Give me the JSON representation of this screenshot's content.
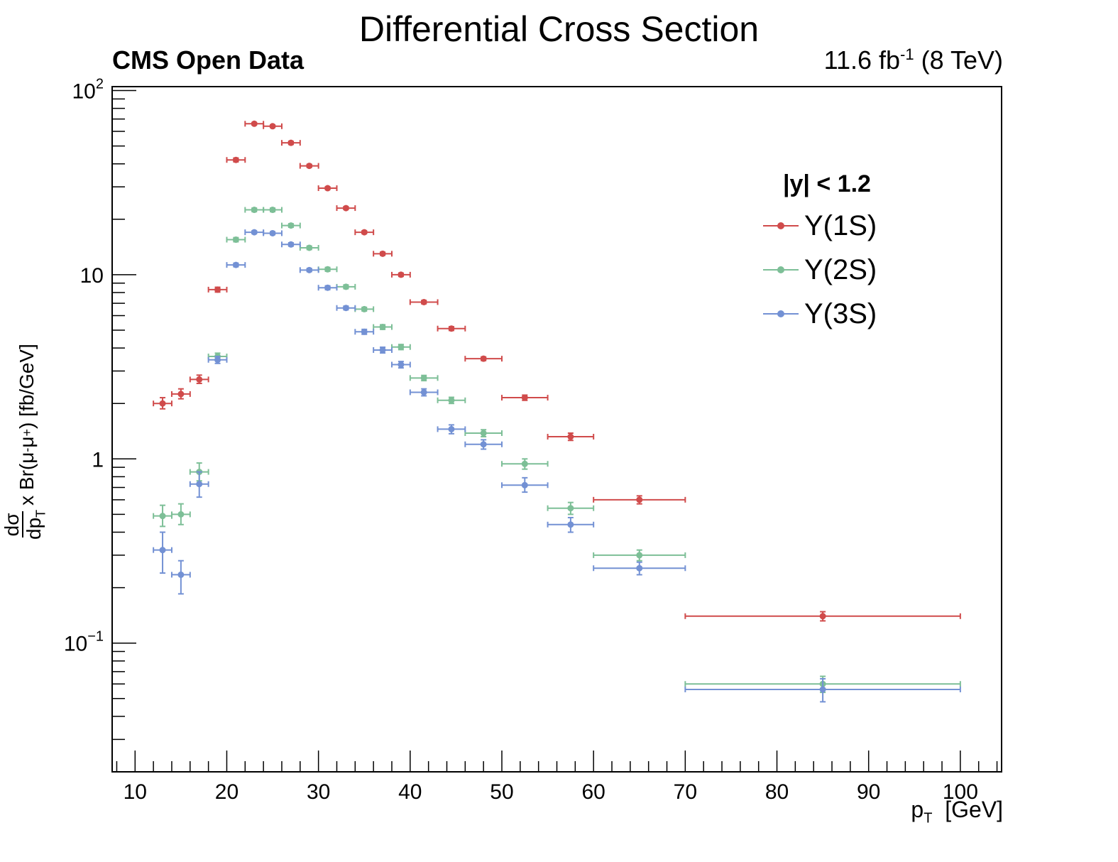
{
  "chart_data": {
    "type": "scatter",
    "title": "Differential Cross Section",
    "experiment_label": "CMS Open Data",
    "lumi_value": "11.6 fb",
    "lumi_exponent": "-1",
    "lumi_energy": "(8 TeV)",
    "ylabel_num": "dσ",
    "ylabel_den": "dp",
    "ylabel_den_sub": "T",
    "ylabel_rest": "x Br(μ",
    "ylabel_sup1": "-",
    "ylabel_mu2": "μ",
    "ylabel_sup2": "+",
    "ylabel_unit": ") [fb/GeV]",
    "xlabel_main": "p",
    "xlabel_sub": "T",
    "xlabel_unit": "[GeV]",
    "legend_header": "|y| < 1.2",
    "xlim": [
      7.5,
      104.5
    ],
    "ylim": [
      0.02,
      105
    ],
    "yscale": "log",
    "x_ticks": [
      10,
      20,
      30,
      40,
      50,
      60,
      70,
      80,
      90,
      100
    ],
    "x_tick_labels": [
      "10",
      "20",
      "30",
      "40",
      "50",
      "60",
      "70",
      "80",
      "90",
      "100"
    ],
    "y_ticks": [
      0.1,
      1,
      10,
      100
    ],
    "y_tick_labels": [
      {
        "base": "10",
        "exp": "−1"
      },
      {
        "base": "1",
        "exp": ""
      },
      {
        "base": "10",
        "exp": ""
      },
      {
        "base": "10",
        "exp": "2"
      }
    ],
    "legend_position": "top-right",
    "grid": false,
    "series": [
      {
        "name": "Υ(1S)",
        "color": "#d04b4b",
        "points": [
          {
            "x": 13,
            "xlo": 12,
            "xhi": 14,
            "y": 2.0,
            "ylo": 1.87,
            "yhi": 2.15
          },
          {
            "x": 15,
            "xlo": 14,
            "xhi": 16,
            "y": 2.25,
            "ylo": 2.12,
            "yhi": 2.4
          },
          {
            "x": 17,
            "xlo": 16,
            "xhi": 18,
            "y": 2.7,
            "ylo": 2.57,
            "yhi": 2.85
          },
          {
            "x": 19,
            "xlo": 18,
            "xhi": 20,
            "y": 8.3,
            "ylo": 8.05,
            "yhi": 8.55
          },
          {
            "x": 21,
            "xlo": 20,
            "xhi": 22,
            "y": 42,
            "ylo": 41,
            "yhi": 43
          },
          {
            "x": 23,
            "xlo": 22,
            "xhi": 24,
            "y": 66,
            "ylo": 65,
            "yhi": 67
          },
          {
            "x": 25,
            "xlo": 24,
            "xhi": 26,
            "y": 64,
            "ylo": 63,
            "yhi": 65
          },
          {
            "x": 27,
            "xlo": 26,
            "xhi": 28,
            "y": 52,
            "ylo": 51,
            "yhi": 53
          },
          {
            "x": 29,
            "xlo": 28,
            "xhi": 30,
            "y": 39,
            "ylo": 38.3,
            "yhi": 39.7
          },
          {
            "x": 31,
            "xlo": 30,
            "xhi": 32,
            "y": 29.5,
            "ylo": 29,
            "yhi": 30
          },
          {
            "x": 33,
            "xlo": 32,
            "xhi": 34,
            "y": 23,
            "ylo": 22.6,
            "yhi": 23.4
          },
          {
            "x": 35,
            "xlo": 34,
            "xhi": 36,
            "y": 17,
            "ylo": 16.7,
            "yhi": 17.3
          },
          {
            "x": 37,
            "xlo": 36,
            "xhi": 38,
            "y": 13,
            "ylo": 12.75,
            "yhi": 13.25
          },
          {
            "x": 39,
            "xlo": 38,
            "xhi": 40,
            "y": 10,
            "ylo": 9.8,
            "yhi": 10.2
          },
          {
            "x": 41.5,
            "xlo": 40,
            "xhi": 43,
            "y": 7.1,
            "ylo": 6.95,
            "yhi": 7.25
          },
          {
            "x": 44.5,
            "xlo": 43,
            "xhi": 46,
            "y": 5.1,
            "ylo": 4.98,
            "yhi": 5.22
          },
          {
            "x": 48,
            "xlo": 46,
            "xhi": 50,
            "y": 3.5,
            "ylo": 3.42,
            "yhi": 3.58
          },
          {
            "x": 52.5,
            "xlo": 50,
            "xhi": 55,
            "y": 2.15,
            "ylo": 2.08,
            "yhi": 2.22
          },
          {
            "x": 57.5,
            "xlo": 55,
            "xhi": 60,
            "y": 1.32,
            "ylo": 1.26,
            "yhi": 1.38
          },
          {
            "x": 65,
            "xlo": 60,
            "xhi": 70,
            "y": 0.6,
            "ylo": 0.57,
            "yhi": 0.63
          },
          {
            "x": 85,
            "xlo": 70,
            "xhi": 100,
            "y": 0.14,
            "ylo": 0.132,
            "yhi": 0.148
          }
        ]
      },
      {
        "name": "Υ(2S)",
        "color": "#7dbf97",
        "points": [
          {
            "x": 13,
            "xlo": 12,
            "xhi": 14,
            "y": 0.49,
            "ylo": 0.43,
            "yhi": 0.56
          },
          {
            "x": 15,
            "xlo": 14,
            "xhi": 16,
            "y": 0.5,
            "ylo": 0.44,
            "yhi": 0.57
          },
          {
            "x": 17,
            "xlo": 16,
            "xhi": 18,
            "y": 0.85,
            "ylo": 0.76,
            "yhi": 0.95
          },
          {
            "x": 19,
            "xlo": 18,
            "xhi": 20,
            "y": 3.6,
            "ylo": 3.45,
            "yhi": 3.75
          },
          {
            "x": 21,
            "xlo": 20,
            "xhi": 22,
            "y": 15.5,
            "ylo": 15.1,
            "yhi": 15.9
          },
          {
            "x": 23,
            "xlo": 22,
            "xhi": 24,
            "y": 22.5,
            "ylo": 22,
            "yhi": 23
          },
          {
            "x": 25,
            "xlo": 24,
            "xhi": 26,
            "y": 22.5,
            "ylo": 22,
            "yhi": 23
          },
          {
            "x": 27,
            "xlo": 26,
            "xhi": 28,
            "y": 18.5,
            "ylo": 18.1,
            "yhi": 18.9
          },
          {
            "x": 29,
            "xlo": 28,
            "xhi": 30,
            "y": 14,
            "ylo": 13.7,
            "yhi": 14.3
          },
          {
            "x": 31,
            "xlo": 30,
            "xhi": 32,
            "y": 10.7,
            "ylo": 10.45,
            "yhi": 10.95
          },
          {
            "x": 33,
            "xlo": 32,
            "xhi": 34,
            "y": 8.6,
            "ylo": 8.4,
            "yhi": 8.8
          },
          {
            "x": 35,
            "xlo": 34,
            "xhi": 36,
            "y": 6.5,
            "ylo": 6.35,
            "yhi": 6.65
          },
          {
            "x": 37,
            "xlo": 36,
            "xhi": 38,
            "y": 5.2,
            "ylo": 5.05,
            "yhi": 5.35
          },
          {
            "x": 39,
            "xlo": 38,
            "xhi": 40,
            "y": 4.05,
            "ylo": 3.92,
            "yhi": 4.18
          },
          {
            "x": 41.5,
            "xlo": 40,
            "xhi": 43,
            "y": 2.75,
            "ylo": 2.66,
            "yhi": 2.84
          },
          {
            "x": 44.5,
            "xlo": 43,
            "xhi": 46,
            "y": 2.08,
            "ylo": 2.0,
            "yhi": 2.16
          },
          {
            "x": 48,
            "xlo": 46,
            "xhi": 50,
            "y": 1.38,
            "ylo": 1.32,
            "yhi": 1.44
          },
          {
            "x": 52.5,
            "xlo": 50,
            "xhi": 55,
            "y": 0.94,
            "ylo": 0.88,
            "yhi": 1.0
          },
          {
            "x": 57.5,
            "xlo": 55,
            "xhi": 60,
            "y": 0.54,
            "ylo": 0.5,
            "yhi": 0.58
          },
          {
            "x": 65,
            "xlo": 60,
            "xhi": 70,
            "y": 0.3,
            "ylo": 0.28,
            "yhi": 0.32
          },
          {
            "x": 85,
            "xlo": 70,
            "xhi": 100,
            "y": 0.06,
            "ylo": 0.054,
            "yhi": 0.066
          }
        ]
      },
      {
        "name": "Υ(3S)",
        "color": "#7391d4",
        "points": [
          {
            "x": 13,
            "xlo": 12,
            "xhi": 14,
            "y": 0.32,
            "ylo": 0.24,
            "yhi": 0.4
          },
          {
            "x": 15,
            "xlo": 14,
            "xhi": 16,
            "y": 0.235,
            "ylo": 0.185,
            "yhi": 0.28
          },
          {
            "x": 17,
            "xlo": 16,
            "xhi": 18,
            "y": 0.73,
            "ylo": 0.62,
            "yhi": 0.85
          },
          {
            "x": 19,
            "xlo": 18,
            "xhi": 20,
            "y": 3.45,
            "ylo": 3.3,
            "yhi": 3.6
          },
          {
            "x": 21,
            "xlo": 20,
            "xhi": 22,
            "y": 11.3,
            "ylo": 11.05,
            "yhi": 11.55
          },
          {
            "x": 23,
            "xlo": 22,
            "xhi": 24,
            "y": 17,
            "ylo": 16.7,
            "yhi": 17.3
          },
          {
            "x": 25,
            "xlo": 24,
            "xhi": 26,
            "y": 16.8,
            "ylo": 16.5,
            "yhi": 17.1
          },
          {
            "x": 27,
            "xlo": 26,
            "xhi": 28,
            "y": 14.6,
            "ylo": 14.3,
            "yhi": 14.9
          },
          {
            "x": 29,
            "xlo": 28,
            "xhi": 30,
            "y": 10.6,
            "ylo": 10.4,
            "yhi": 10.8
          },
          {
            "x": 31,
            "xlo": 30,
            "xhi": 32,
            "y": 8.5,
            "ylo": 8.3,
            "yhi": 8.7
          },
          {
            "x": 33,
            "xlo": 32,
            "xhi": 34,
            "y": 6.6,
            "ylo": 6.45,
            "yhi": 6.75
          },
          {
            "x": 35,
            "xlo": 34,
            "xhi": 36,
            "y": 4.9,
            "ylo": 4.75,
            "yhi": 5.05
          },
          {
            "x": 37,
            "xlo": 36,
            "xhi": 38,
            "y": 3.9,
            "ylo": 3.76,
            "yhi": 4.04
          },
          {
            "x": 39,
            "xlo": 38,
            "xhi": 40,
            "y": 3.25,
            "ylo": 3.12,
            "yhi": 3.38
          },
          {
            "x": 41.5,
            "xlo": 40,
            "xhi": 43,
            "y": 2.3,
            "ylo": 2.2,
            "yhi": 2.4
          },
          {
            "x": 44.5,
            "xlo": 43,
            "xhi": 46,
            "y": 1.45,
            "ylo": 1.37,
            "yhi": 1.53
          },
          {
            "x": 48,
            "xlo": 46,
            "xhi": 50,
            "y": 1.2,
            "ylo": 1.13,
            "yhi": 1.27
          },
          {
            "x": 52.5,
            "xlo": 50,
            "xhi": 55,
            "y": 0.72,
            "ylo": 0.66,
            "yhi": 0.79
          },
          {
            "x": 57.5,
            "xlo": 55,
            "xhi": 60,
            "y": 0.44,
            "ylo": 0.4,
            "yhi": 0.48
          },
          {
            "x": 65,
            "xlo": 60,
            "xhi": 70,
            "y": 0.255,
            "ylo": 0.235,
            "yhi": 0.275
          },
          {
            "x": 85,
            "xlo": 70,
            "xhi": 100,
            "y": 0.056,
            "ylo": 0.048,
            "yhi": 0.064
          }
        ]
      }
    ]
  }
}
